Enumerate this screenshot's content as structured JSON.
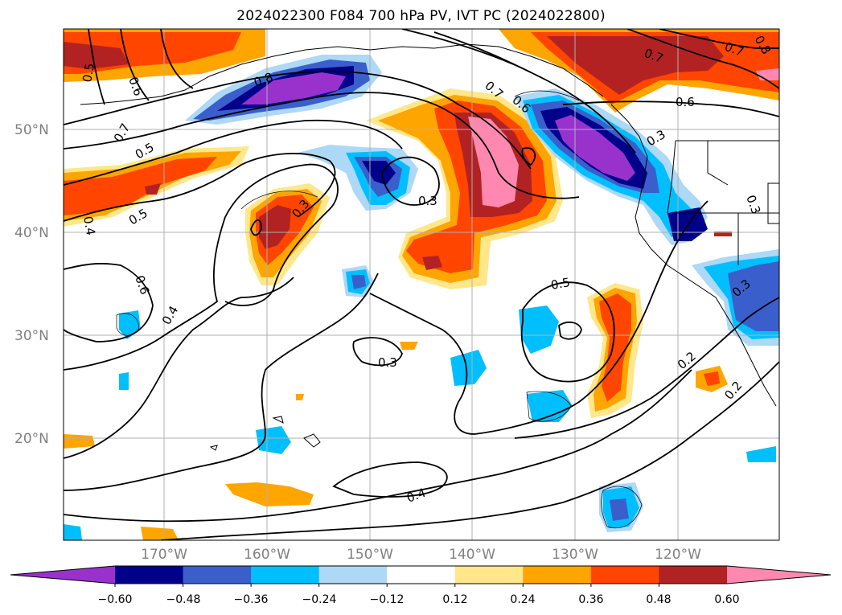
{
  "title": "2024022300 F084 700 hPa PV, IVT PC (2024022800)",
  "map": {
    "region": "North Pacific / western North America",
    "lon_labels": [
      "170°W",
      "160°W",
      "150°W",
      "140°W",
      "130°W",
      "120°W"
    ],
    "lat_labels": [
      "50°N",
      "40°N",
      "30°N",
      "20°N"
    ],
    "gridlines": true,
    "contour_color": "#000000",
    "gridline_color": "#b0b0b0",
    "contour_labels": [
      "0.5",
      "0.6",
      "0.7",
      "0.8",
      "0.7",
      "0.6",
      "0.7",
      "0.6",
      "0.5",
      "0.5",
      "0.4",
      "0.3",
      "0.3",
      "0.3",
      "0.6",
      "0.4",
      "0.3",
      "0.5",
      "0.4",
      "0.2",
      "0.2",
      "0.3",
      "0.3",
      "0.8",
      "0.7"
    ]
  },
  "colorbar": {
    "ticks": [
      "−0.60",
      "−0.48",
      "−0.36",
      "−0.24",
      "−0.12",
      "0.12",
      "0.24",
      "0.36",
      "0.48",
      "0.60"
    ],
    "colors": [
      "#9932cc",
      "#00008b",
      "#3a5fcd",
      "#00bfff",
      "#add8f6",
      "#ffffff",
      "#ffe78a",
      "#ffa500",
      "#ff4500",
      "#b22222",
      "#ff88b0"
    ],
    "extend": "both"
  }
}
